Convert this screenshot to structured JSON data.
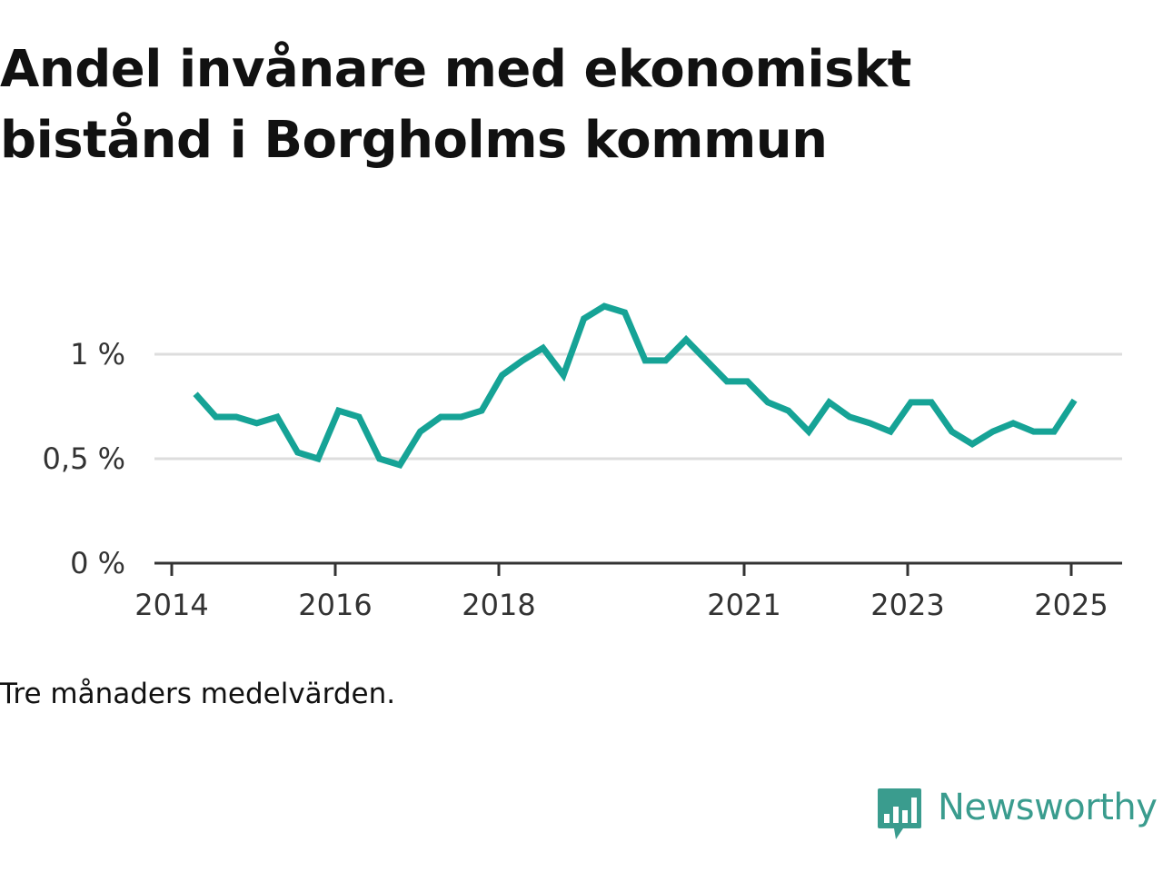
{
  "title": "Andel invånare med ekonomiskt bistånd i Borgholms kommun",
  "note": "Tre månaders medelvärden.",
  "brand": {
    "name": "Newsworthy",
    "color": "#3a9c8e"
  },
  "colors": {
    "line": "#16a396",
    "grid": "#dddddd",
    "axis": "#333333"
  },
  "chart_data": {
    "type": "line",
    "title": "Andel invånare med ekonomiskt bistånd i Borgholms kommun",
    "xlabel": "",
    "ylabel": "",
    "ylim": [
      0,
      1.3
    ],
    "xlim": [
      2014.0,
      2025.5
    ],
    "y_ticks": [
      {
        "value": 0,
        "label": "0 %"
      },
      {
        "value": 0.5,
        "label": "0,5 %"
      },
      {
        "value": 1,
        "label": "1 %"
      }
    ],
    "x_ticks": [
      {
        "value": 2014,
        "label": "2014"
      },
      {
        "value": 2016,
        "label": "2016"
      },
      {
        "value": 2018,
        "label": "2018"
      },
      {
        "value": 2021,
        "label": "2021"
      },
      {
        "value": 2023,
        "label": "2023"
      },
      {
        "value": 2025,
        "label": "2025"
      }
    ],
    "grid": true,
    "series": [
      {
        "x": [
          2014.29,
          2014.54,
          2014.79,
          2015.04,
          2015.29,
          2015.54,
          2015.79,
          2016.04,
          2016.29,
          2016.54,
          2016.79,
          2017.04,
          2017.29,
          2017.54,
          2017.79,
          2018.04,
          2018.29,
          2018.54,
          2018.79,
          2019.04,
          2019.29,
          2019.54,
          2019.79,
          2020.04,
          2020.29,
          2020.54,
          2020.79,
          2021.04,
          2021.29,
          2021.54,
          2021.79,
          2022.04,
          2022.29,
          2022.54,
          2022.79,
          2023.04,
          2023.29,
          2023.54,
          2023.79,
          2024.04,
          2024.29,
          2024.54,
          2024.79,
          2025.04
        ],
        "values": [
          0.81,
          0.7,
          0.7,
          0.67,
          0.7,
          0.53,
          0.5,
          0.73,
          0.7,
          0.5,
          0.47,
          0.63,
          0.7,
          0.7,
          0.73,
          0.9,
          0.97,
          1.03,
          0.9,
          1.17,
          1.23,
          1.2,
          0.97,
          0.97,
          1.07,
          0.97,
          0.87,
          0.87,
          0.77,
          0.73,
          0.63,
          0.77,
          0.7,
          0.67,
          0.63,
          0.77,
          0.77,
          0.63,
          0.57,
          0.63,
          0.67,
          0.63,
          0.63,
          0.78
        ]
      }
    ]
  }
}
